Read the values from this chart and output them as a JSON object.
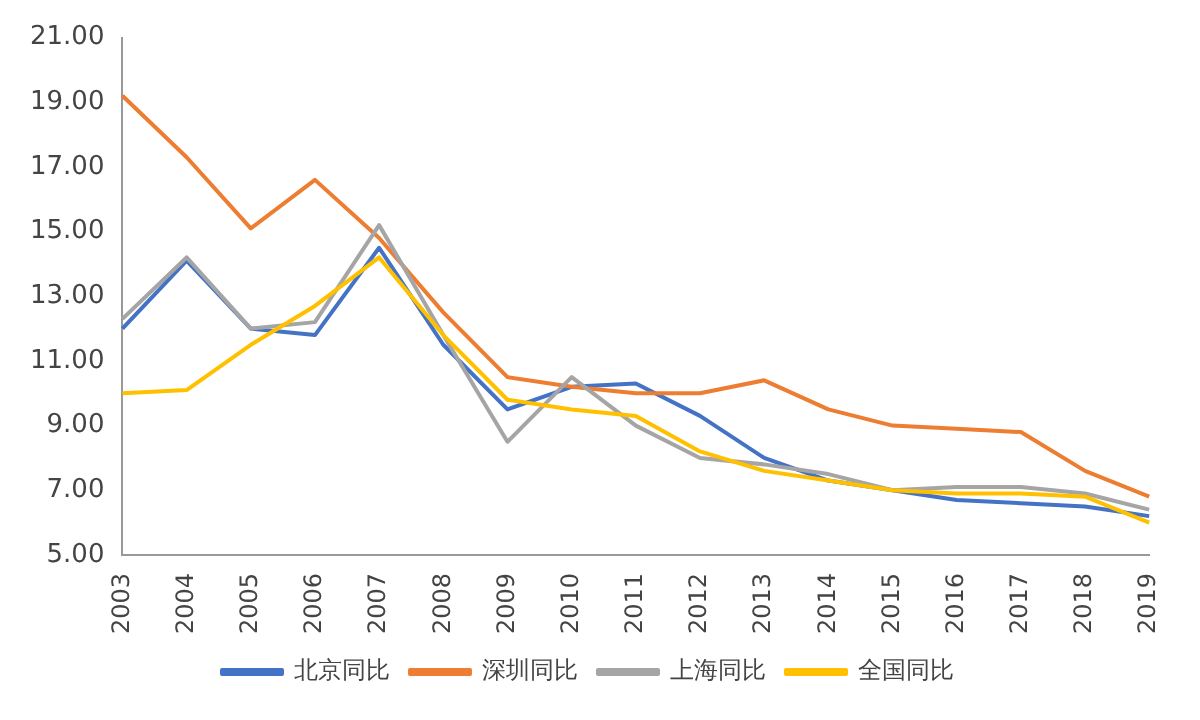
{
  "chart_data": {
    "type": "line",
    "categories": [
      "2003",
      "2004",
      "2005",
      "2006",
      "2007",
      "2008",
      "2009",
      "2010",
      "2011",
      "2012",
      "2013",
      "2014",
      "2015",
      "2016",
      "2017",
      "2018",
      "2019"
    ],
    "series": [
      {
        "name": "北京同比",
        "color": "#4472c4",
        "values": [
          12.0,
          14.1,
          12.0,
          11.8,
          14.5,
          11.5,
          9.5,
          10.2,
          10.3,
          9.3,
          8.0,
          7.3,
          7.0,
          6.7,
          6.6,
          6.5,
          6.2
        ]
      },
      {
        "name": "深圳同比",
        "color": "#ed7d31",
        "values": [
          19.2,
          17.3,
          15.1,
          16.6,
          14.8,
          12.5,
          10.5,
          10.2,
          10.0,
          10.0,
          10.4,
          9.5,
          9.0,
          8.9,
          8.8,
          7.6,
          6.8
        ]
      },
      {
        "name": "上海同比",
        "color": "#a5a5a5",
        "values": [
          12.3,
          14.2,
          12.0,
          12.2,
          15.2,
          11.8,
          8.5,
          10.5,
          9.0,
          8.0,
          7.8,
          7.5,
          7.0,
          7.1,
          7.1,
          6.9,
          6.4
        ]
      },
      {
        "name": "全国同比",
        "color": "#ffc000",
        "values": [
          10.0,
          10.1,
          11.5,
          12.7,
          14.2,
          11.8,
          9.8,
          9.5,
          9.3,
          8.2,
          7.6,
          7.3,
          7.0,
          6.9,
          6.9,
          6.8,
          6.0
        ]
      }
    ],
    "ylim": [
      5,
      21
    ],
    "yticks": [
      {
        "value": 5,
        "label": "5.00"
      },
      {
        "value": 7,
        "label": "7.00"
      },
      {
        "value": 9,
        "label": "9.00"
      },
      {
        "value": 11,
        "label": "11.00"
      },
      {
        "value": 13,
        "label": "13.00"
      },
      {
        "value": 15,
        "label": "15.00"
      },
      {
        "value": 17,
        "label": "17.00"
      },
      {
        "value": 19,
        "label": "19.00"
      },
      {
        "value": 21,
        "label": "21.00"
      }
    ],
    "grid": false,
    "legend": "bottom",
    "marker": "none",
    "line_style": "solid"
  }
}
